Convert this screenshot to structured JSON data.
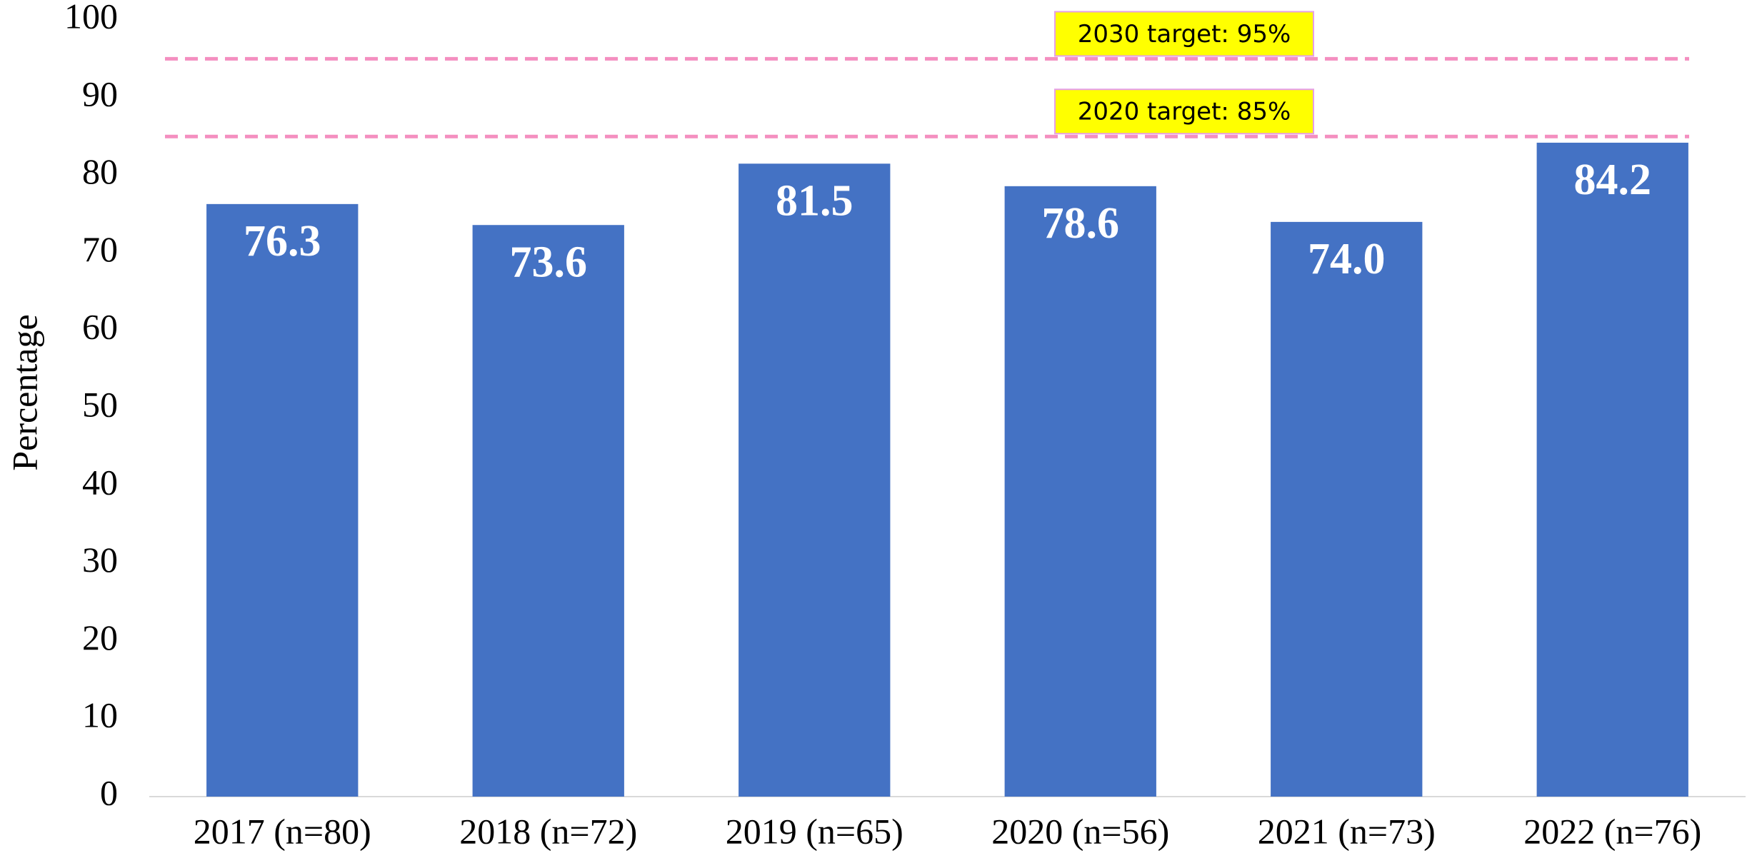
{
  "chart_data": {
    "type": "bar",
    "y_label": "Percentage",
    "categories": [
      "2017 (n=80)",
      "2018 (n=72)",
      "2019 (n=65)",
      "2020 (n=56)",
      "2021 (n=73)",
      "2022 (n=76)"
    ],
    "values": [
      76.3,
      73.6,
      81.5,
      78.6,
      74,
      84.2
    ],
    "value_labels": [
      "76.3",
      "73.6",
      "81.5",
      "78.6",
      "74.0",
      "84.2"
    ],
    "color": "#4472c4",
    "ylim": [
      0,
      100
    ],
    "yticks": [
      0,
      10,
      20,
      30,
      40,
      50,
      60,
      70,
      80,
      90,
      100
    ],
    "grid": false,
    "reference_lines": [
      {
        "value": 95,
        "label": "2030 target: 95%",
        "color": "#f48fc0"
      },
      {
        "value": 85,
        "label": "2020 target: 85%",
        "color": "#f48fc0"
      }
    ]
  }
}
